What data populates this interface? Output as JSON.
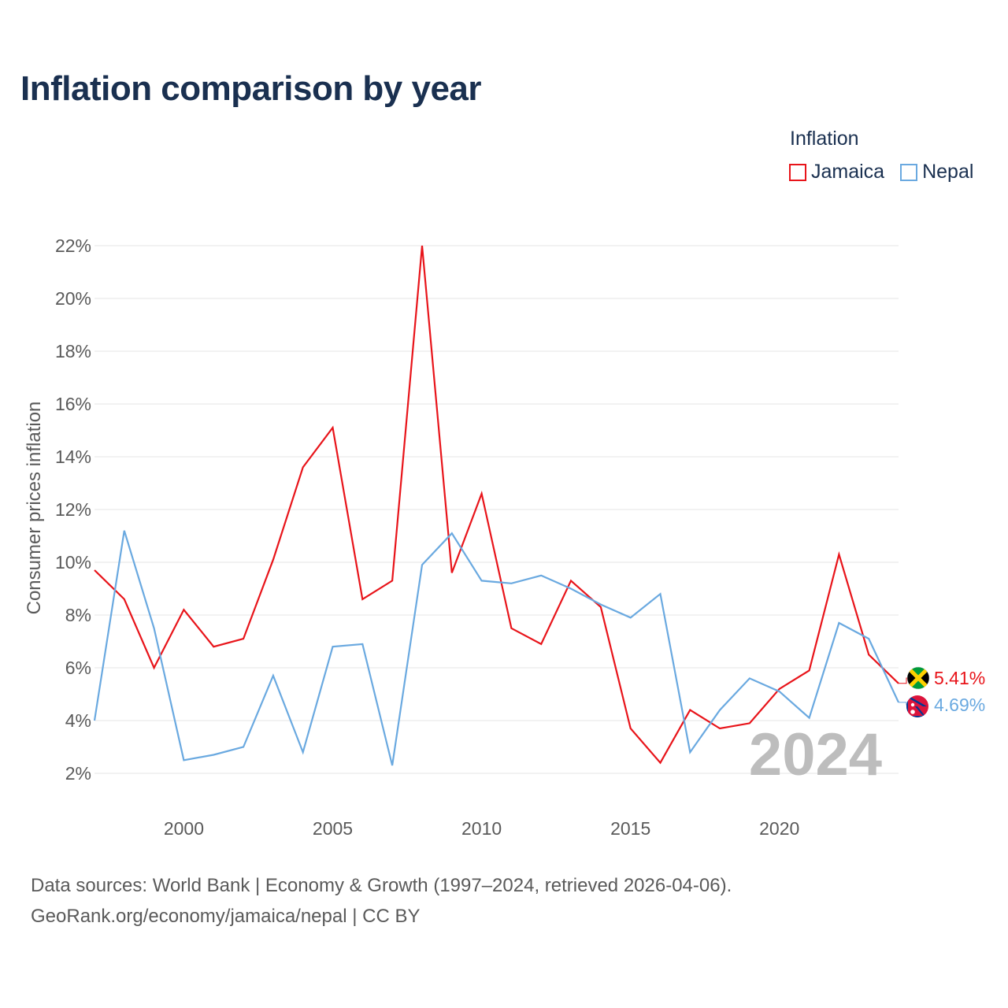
{
  "page": {
    "title": "Inflation comparison by year",
    "source_line1": "Data sources: World Bank | Economy & Growth (1997–2024, retrieved 2026-04-06).",
    "source_line2": "GeoRank.org/economy/jamaica/nepal | CC BY",
    "watermark_year": "2024"
  },
  "legend": {
    "title": "Inflation",
    "items": [
      {
        "label": "Jamaica",
        "color": "#e8141a"
      },
      {
        "label": "Nepal",
        "color": "#6aa9e0"
      }
    ]
  },
  "chart_data": {
    "type": "line",
    "title": "Inflation comparison by year",
    "xlabel": "",
    "ylabel": "Consumer prices inflation",
    "xlim": [
      1997,
      2024
    ],
    "ylim": [
      2,
      22
    ],
    "yticks": [
      2,
      4,
      6,
      8,
      10,
      12,
      14,
      16,
      18,
      20,
      22
    ],
    "ytick_labels": [
      "2%",
      "4%",
      "6%",
      "8%",
      "10%",
      "12%",
      "14%",
      "16%",
      "18%",
      "20%",
      "22%"
    ],
    "xticks": [
      2000,
      2005,
      2010,
      2015,
      2020
    ],
    "xtick_labels": [
      "2000",
      "2005",
      "2010",
      "2015",
      "2020"
    ],
    "grid": true,
    "legend_position": "top-right",
    "x": [
      1997,
      1998,
      1999,
      2000,
      2001,
      2002,
      2003,
      2004,
      2005,
      2006,
      2007,
      2008,
      2009,
      2010,
      2011,
      2012,
      2013,
      2014,
      2015,
      2016,
      2017,
      2018,
      2019,
      2020,
      2021,
      2022,
      2023,
      2024
    ],
    "series": [
      {
        "name": "Jamaica",
        "color": "#e8141a",
        "end_label": "5.41%",
        "values": [
          9.7,
          8.6,
          6.0,
          8.2,
          6.8,
          7.1,
          10.1,
          13.6,
          15.1,
          8.6,
          9.3,
          22.0,
          9.6,
          12.6,
          7.5,
          6.9,
          9.3,
          8.3,
          3.7,
          2.4,
          4.4,
          3.7,
          3.9,
          5.2,
          5.9,
          10.3,
          6.5,
          5.41
        ]
      },
      {
        "name": "Nepal",
        "color": "#6aa9e0",
        "end_label": "4.69%",
        "values": [
          4.0,
          11.2,
          7.5,
          2.5,
          2.7,
          3.0,
          5.7,
          2.8,
          6.8,
          6.9,
          2.3,
          9.9,
          11.1,
          9.3,
          9.2,
          9.5,
          9.0,
          8.4,
          7.9,
          8.8,
          2.8,
          4.4,
          5.6,
          5.1,
          4.1,
          7.7,
          7.1,
          4.69
        ]
      }
    ]
  }
}
